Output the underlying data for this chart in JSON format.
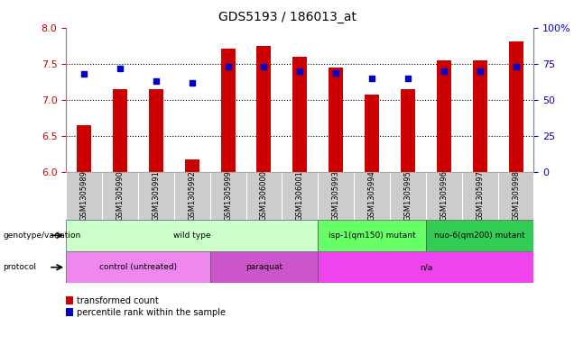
{
  "title": "GDS5193 / 186013_at",
  "samples": [
    "GSM1305989",
    "GSM1305990",
    "GSM1305991",
    "GSM1305992",
    "GSM1305999",
    "GSM1306000",
    "GSM1306001",
    "GSM1305993",
    "GSM1305994",
    "GSM1305995",
    "GSM1305996",
    "GSM1305997",
    "GSM1305998"
  ],
  "bar_values": [
    6.65,
    7.15,
    7.15,
    6.17,
    7.72,
    7.75,
    7.6,
    7.45,
    7.08,
    7.15,
    7.55,
    7.55,
    7.82
  ],
  "percentile_values": [
    68,
    72,
    63,
    62,
    73,
    73,
    70,
    69,
    65,
    65,
    70,
    70,
    73
  ],
  "bar_bottom": 6.0,
  "ylim": [
    6.0,
    8.0
  ],
  "right_ylim": [
    0,
    100
  ],
  "right_yticks": [
    0,
    25,
    50,
    75,
    100
  ],
  "right_yticklabels": [
    "0",
    "25",
    "50",
    "75",
    "100%"
  ],
  "left_yticks": [
    6.0,
    6.5,
    7.0,
    7.5,
    8.0
  ],
  "bar_color": "#cc0000",
  "percentile_color": "#0000cc",
  "genotype_groups": [
    {
      "label": "wild type",
      "start": 0,
      "end": 7,
      "color": "#ccffcc"
    },
    {
      "label": "isp-1(qm150) mutant",
      "start": 7,
      "end": 10,
      "color": "#66ff66"
    },
    {
      "label": "nuo-6(qm200) mutant",
      "start": 10,
      "end": 13,
      "color": "#33cc55"
    }
  ],
  "protocol_groups": [
    {
      "label": "control (untreated)",
      "start": 0,
      "end": 4,
      "color": "#ee88ee"
    },
    {
      "label": "paraquat",
      "start": 4,
      "end": 7,
      "color": "#cc55cc"
    },
    {
      "label": "n/a",
      "start": 7,
      "end": 13,
      "color": "#ee44ee"
    }
  ],
  "tick_bg_color": "#cccccc",
  "genotype_label": "genotype/variation",
  "protocol_label": "protocol",
  "legend_bar_label": "transformed count",
  "legend_pct_label": "percentile rank within the sample",
  "hgrid_values": [
    6.5,
    7.0,
    7.5
  ],
  "dotted_color": "#000000",
  "bar_width": 0.4
}
